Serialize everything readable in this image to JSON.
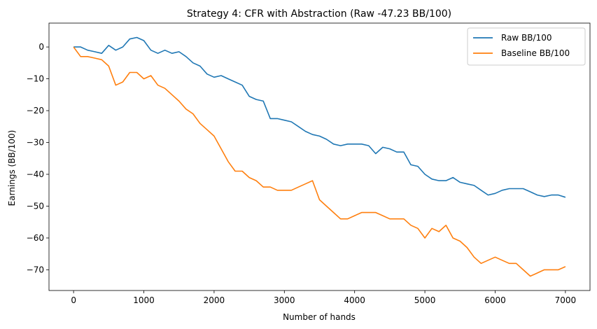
{
  "chart_data": {
    "type": "line",
    "title": "Strategy 4: CFR with Abstraction (Raw -47.23 BB/100)",
    "xlabel": "Number of hands",
    "ylabel": "Earnings (BB/100)",
    "xlim": [
      -350,
      7350
    ],
    "ylim": [
      -76.5,
      7.5
    ],
    "xticks": [
      0,
      1000,
      2000,
      3000,
      4000,
      5000,
      6000,
      7000
    ],
    "xtick_labels": [
      "0",
      "1000",
      "2000",
      "3000",
      "4000",
      "5000",
      "6000",
      "7000"
    ],
    "yticks": [
      0,
      -10,
      -20,
      -30,
      -40,
      -50,
      -60,
      -70
    ],
    "ytick_labels": [
      "0",
      "−10",
      "−20",
      "−30",
      "−40",
      "−50",
      "−60",
      "−70"
    ],
    "grid": false,
    "legend_position": "upper-right",
    "series": [
      {
        "name": "Raw BB/100",
        "color": "#1f77b4",
        "x": [
          0,
          100,
          200,
          300,
          400,
          500,
          600,
          700,
          800,
          900,
          1000,
          1100,
          1200,
          1300,
          1400,
          1500,
          1600,
          1700,
          1800,
          1900,
          2000,
          2100,
          2200,
          2300,
          2400,
          2500,
          2600,
          2700,
          2800,
          2900,
          3000,
          3100,
          3200,
          3300,
          3400,
          3500,
          3600,
          3700,
          3800,
          3900,
          4000,
          4100,
          4200,
          4300,
          4400,
          4500,
          4600,
          4700,
          4800,
          4900,
          5000,
          5100,
          5200,
          5300,
          5400,
          5500,
          5600,
          5700,
          5800,
          5900,
          6000,
          6100,
          6200,
          6300,
          6400,
          6500,
          6600,
          6700,
          6800,
          6900,
          7000
        ],
        "y": [
          0,
          0,
          -1,
          -1.5,
          -2,
          0.5,
          -1,
          0,
          2.5,
          3,
          2,
          -1,
          -2,
          -1,
          -2,
          -1.5,
          -3,
          -5,
          -6,
          -8.5,
          -9.5,
          -9,
          -10,
          -11,
          -12,
          -15.5,
          -16.5,
          -17,
          -22.5,
          -22.5,
          -23,
          -23.5,
          -25,
          -26.5,
          -27.5,
          -28,
          -29,
          -30.5,
          -31,
          -30.5,
          -30.5,
          -30.5,
          -31,
          -33.5,
          -31.5,
          -32,
          -33,
          -33,
          -37,
          -37.5,
          -40,
          -41.5,
          -42,
          -42,
          -41,
          -42.5,
          -43,
          -43.5,
          -45,
          -46.5,
          -46,
          -45,
          -44.5,
          -44.5,
          -44.5,
          -45.5,
          -46.5,
          -47,
          -46.5,
          -46.5,
          -47.2
        ]
      },
      {
        "name": "Baseline BB/100",
        "color": "#ff7f0e",
        "x": [
          0,
          100,
          200,
          300,
          400,
          500,
          600,
          700,
          800,
          900,
          1000,
          1100,
          1200,
          1300,
          1400,
          1500,
          1600,
          1700,
          1800,
          1900,
          2000,
          2100,
          2200,
          2300,
          2400,
          2500,
          2600,
          2700,
          2800,
          2900,
          3000,
          3100,
          3200,
          3300,
          3400,
          3500,
          3600,
          3700,
          3800,
          3900,
          4000,
          4100,
          4200,
          4300,
          4400,
          4500,
          4600,
          4700,
          4800,
          4900,
          5000,
          5100,
          5200,
          5300,
          5400,
          5500,
          5600,
          5700,
          5800,
          5900,
          6000,
          6100,
          6200,
          6300,
          6400,
          6500,
          6600,
          6700,
          6800,
          6900,
          7000
        ],
        "y": [
          0,
          -3,
          -3,
          -3.5,
          -4,
          -6,
          -12,
          -11,
          -8,
          -8,
          -10,
          -9,
          -12,
          -13,
          -15,
          -17,
          -19.5,
          -21,
          -24,
          -26,
          -28,
          -32,
          -36,
          -39,
          -39,
          -41,
          -42,
          -44,
          -44,
          -45,
          -45,
          -45,
          -44,
          -43,
          -42,
          -48,
          -50,
          -52,
          -54,
          -54,
          -53,
          -52,
          -52,
          -52,
          -53,
          -54,
          -54,
          -54,
          -56,
          -57,
          -60,
          -57,
          -58,
          -56,
          -60,
          -61,
          -63,
          -66,
          -68,
          -67,
          -66,
          -67,
          -68,
          -68,
          -70,
          -72,
          -71,
          -70,
          -70,
          -70,
          -69
        ]
      }
    ]
  }
}
